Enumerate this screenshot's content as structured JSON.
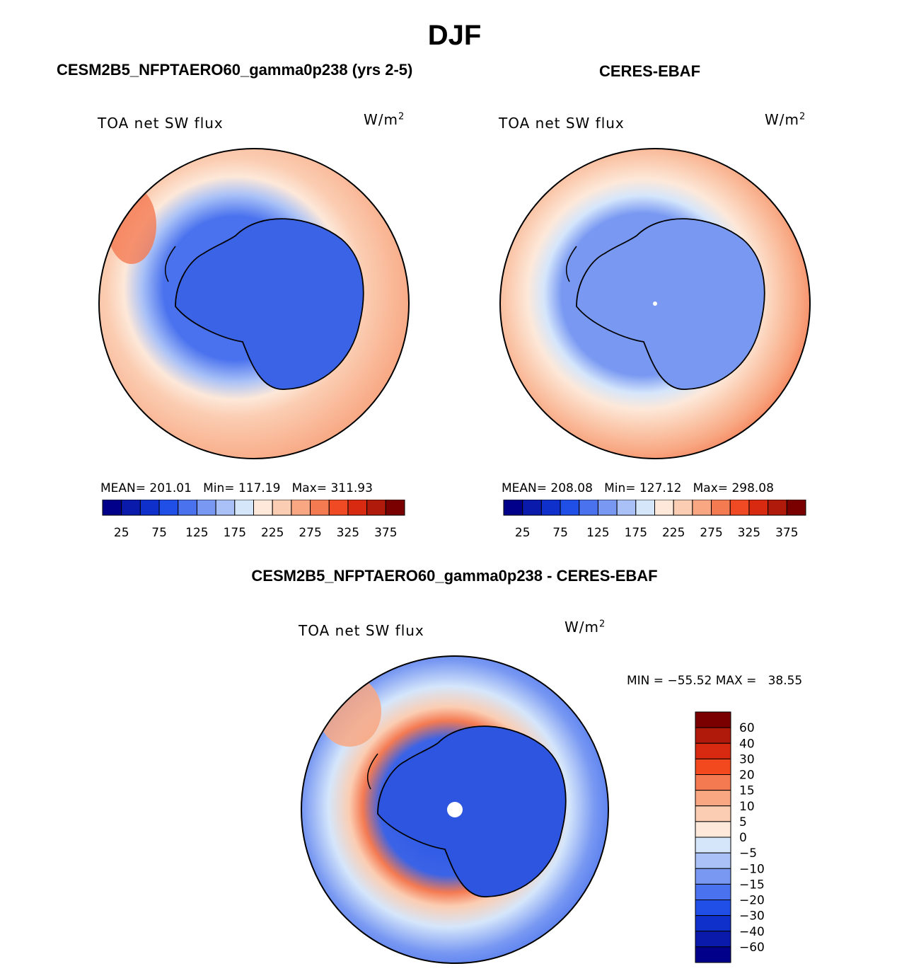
{
  "figure": {
    "season": "DJF",
    "diff_title": "CESM2B5_NFPTAERO60_gamma0p238 - CERES-EBAF"
  },
  "colors": {
    "land_outline": "#000000",
    "hbar": [
      "#00008b",
      "#0a1aab",
      "#1030cc",
      "#1f4fe6",
      "#4a72ee",
      "#7898f2",
      "#a9c1f7",
      "#d5e6fb",
      "#fde8d9",
      "#fbcdb2",
      "#f8a782",
      "#f47a52",
      "#ef4a24",
      "#d72a10",
      "#b01a0a",
      "#7a0000"
    ],
    "vbar": [
      "#7a0000",
      "#b01a0a",
      "#d72a10",
      "#f24a1e",
      "#f47a52",
      "#f8a782",
      "#fbcdb2",
      "#fde8d9",
      "#d5e6fb",
      "#a9c1f7",
      "#7898f2",
      "#4a72ee",
      "#1f4fe6",
      "#1030cc",
      "#0a1aab",
      "#00008b"
    ]
  },
  "panels": [
    {
      "title": "CESM2B5_NFPTAERO60_gamma0p238 (yrs 2-5)",
      "variable": "TOA net SW flux",
      "units_base": "W/m",
      "units_exp": "2",
      "mean_label": "MEAN=",
      "mean": "201.01",
      "min_label": "Min=",
      "min": "117.19",
      "max_label": "Max=",
      "max": "311.93"
    },
    {
      "title": "CERES-EBAF",
      "variable": "TOA net SW flux",
      "units_base": "W/m",
      "units_exp": "2",
      "mean_label": "MEAN=",
      "mean": "208.08",
      "min_label": "Min=",
      "min": "127.12",
      "max_label": "Max=",
      "max": "298.08"
    },
    {
      "variable": "TOA net SW flux",
      "units_base": "W/m",
      "units_exp": "2",
      "minmax_text": "MIN = −55.52 MAX =   38.55"
    }
  ],
  "chart_data": [
    {
      "type": "heatmap",
      "title": "CESM2B5_NFPTAERO60_gamma0p238 (yrs 2-5)",
      "subtitle": "TOA net SW flux",
      "projection": "south polar stereographic",
      "units": "W/m2",
      "mean": 201.01,
      "min": 117.19,
      "max": 311.93,
      "colorbar_ticks": [
        "25",
        "75",
        "125",
        "175",
        "225",
        "275",
        "325",
        "375"
      ],
      "colorbar_range": [
        0,
        400
      ],
      "colorbar_levels": 16
    },
    {
      "type": "heatmap",
      "title": "CERES-EBAF",
      "subtitle": "TOA net SW flux",
      "projection": "south polar stereographic",
      "units": "W/m2",
      "mean": 208.08,
      "min": 127.12,
      "max": 298.08,
      "colorbar_ticks": [
        "25",
        "75",
        "125",
        "175",
        "225",
        "275",
        "325",
        "375"
      ],
      "colorbar_range": [
        0,
        400
      ],
      "colorbar_levels": 16
    },
    {
      "type": "heatmap",
      "title": "CESM2B5_NFPTAERO60_gamma0p238 - CERES-EBAF",
      "subtitle": "TOA net SW flux",
      "projection": "south polar stereographic",
      "units": "W/m2",
      "min": -55.52,
      "max": 38.55,
      "colorbar_ticks": [
        "60",
        "40",
        "30",
        "20",
        "15",
        "10",
        "5",
        "0",
        "−5",
        "−10",
        "−15",
        "−20",
        "−30",
        "−40",
        "−60"
      ],
      "colorbar_levels": 16
    }
  ]
}
